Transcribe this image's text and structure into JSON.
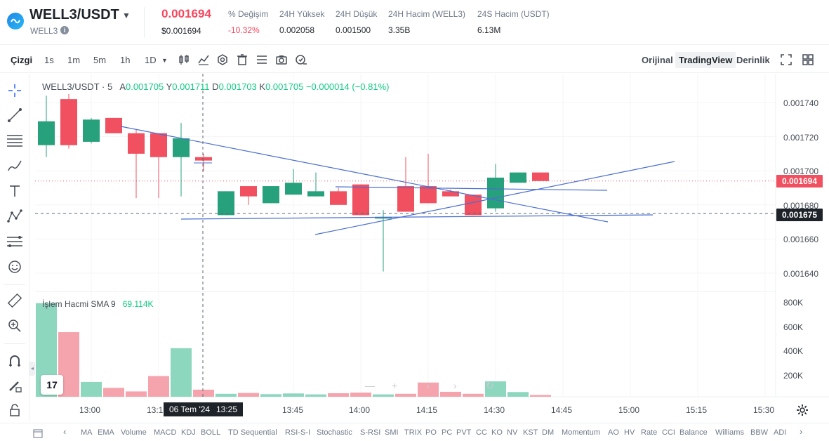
{
  "header": {
    "pair": "WELL3/USDT",
    "sub": "WELL3",
    "last_price": "0.001694",
    "last_price_usd": "$0.001694",
    "stats": [
      {
        "label": "% Değişim",
        "value": "-10.32%",
        "negative": true
      },
      {
        "label": "24H Yüksek",
        "value": "0.002058",
        "negative": false
      },
      {
        "label": "24H Düşük",
        "value": "0.001500",
        "negative": false
      },
      {
        "label": "24H Hacim (WELL3)",
        "value": "3.35B",
        "negative": false
      },
      {
        "label": "24S Hacim (USDT)",
        "value": "6.13M",
        "negative": false
      }
    ]
  },
  "toolbar": {
    "line_label": "Çizgi",
    "intervals": [
      "1s",
      "1m",
      "5m",
      "1h",
      "1D"
    ],
    "views": [
      "Orijinal",
      "TradingView",
      "Derinlik"
    ],
    "active_view": "TradingView"
  },
  "legend": {
    "symbol": "WELL3/USDT · 5",
    "items": [
      {
        "k": "A",
        "v": "0.001705"
      },
      {
        "k": "Y",
        "v": "0.001711"
      },
      {
        "k": "D",
        "v": "0.001703"
      },
      {
        "k": "K",
        "v": "0.001705"
      }
    ],
    "change": "−0.000014 (−0.81%)"
  },
  "volume_legend": {
    "label": "İşlem Hacmi SMA 9",
    "value": "69.114K"
  },
  "price_axis": [
    "0.001740",
    "0.001720",
    "0.001700",
    "0.001680",
    "0.001660",
    "0.001640"
  ],
  "volume_axis": [
    "800K",
    "600K",
    "400K",
    "200K"
  ],
  "time_axis": [
    "13:00",
    "13:1",
    "13:45",
    "14:00",
    "14:15",
    "14:30",
    "14:45",
    "15:00",
    "15:15",
    "15:30"
  ],
  "crosshair": {
    "date": "06 Tem '24",
    "time": "13:25",
    "price": "0.001675"
  },
  "current_price_tag": "0.001694",
  "colors": {
    "up": "#26a17b",
    "down": "#f0505f",
    "up_vol": "#8ed7bf",
    "down_vol": "#f5a4ad",
    "trendline": "#4a6fd1"
  },
  "chart_data": {
    "type": "candlestick",
    "interval": "5m",
    "series": [
      {
        "t": "12:55",
        "o": 0.001715,
        "h": 0.001744,
        "l": 0.001708,
        "c": 0.001729,
        "vol": 790000
      },
      {
        "t": "13:00",
        "o": 0.001742,
        "h": 0.001745,
        "l": 0.001713,
        "c": 0.001715,
        "vol": 545000
      },
      {
        "t": "13:05",
        "o": 0.001717,
        "h": 0.001731,
        "l": 0.001716,
        "c": 0.00173,
        "vol": 125000
      },
      {
        "t": "13:10",
        "o": 0.001731,
        "h": 0.001731,
        "l": 0.001722,
        "c": 0.001722,
        "vol": 75000
      },
      {
        "t": "13:15",
        "o": 0.001722,
        "h": 0.001724,
        "l": 0.001684,
        "c": 0.00171,
        "vol": 45000
      },
      {
        "t": "13:20",
        "o": 0.001722,
        "h": 0.001722,
        "l": 0.001684,
        "c": 0.001708,
        "vol": 175000
      },
      {
        "t": "13:25",
        "o": 0.001708,
        "h": 0.001728,
        "l": 0.001685,
        "c": 0.001719,
        "vol": 410000
      },
      {
        "t": "13:30",
        "o": 0.001708,
        "h": 0.00171,
        "l": 0.0017,
        "c": 0.001706,
        "vol": 60000
      },
      {
        "t": "13:35",
        "o": 0.001674,
        "h": 0.001688,
        "l": 0.001674,
        "c": 0.001688,
        "vol": 25000
      },
      {
        "t": "13:40",
        "o": 0.001691,
        "h": 0.001691,
        "l": 0.00168,
        "c": 0.001685,
        "vol": 32000
      },
      {
        "t": "13:45",
        "o": 0.001681,
        "h": 0.001691,
        "l": 0.001681,
        "c": 0.001691,
        "vol": 22000
      },
      {
        "t": "13:50",
        "o": 0.001686,
        "h": 0.001701,
        "l": 0.001686,
        "c": 0.001693,
        "vol": 28000
      },
      {
        "t": "13:55",
        "o": 0.001685,
        "h": 0.001699,
        "l": 0.001685,
        "c": 0.001688,
        "vol": 20000
      },
      {
        "t": "14:00",
        "o": 0.001688,
        "h": 0.00169,
        "l": 0.00168,
        "c": 0.00168,
        "vol": 30000
      },
      {
        "t": "14:05",
        "o": 0.001692,
        "h": 0.001692,
        "l": 0.001674,
        "c": 0.001674,
        "vol": 35000
      },
      {
        "t": "14:10",
        "o": 0.001672,
        "h": 0.001677,
        "l": 0.001641,
        "c": 0.001673,
        "vol": 20000
      },
      {
        "t": "14:15",
        "o": 0.001691,
        "h": 0.001708,
        "l": 0.001676,
        "c": 0.001676,
        "vol": 25000
      },
      {
        "t": "14:20",
        "o": 0.001691,
        "h": 0.00171,
        "l": 0.001681,
        "c": 0.001681,
        "vol": 120000
      },
      {
        "t": "14:25",
        "o": 0.001688,
        "h": 0.001689,
        "l": 0.001685,
        "c": 0.001685,
        "vol": 42000
      },
      {
        "t": "14:30",
        "o": 0.001686,
        "h": 0.001686,
        "l": 0.001674,
        "c": 0.001674,
        "vol": 25000
      },
      {
        "t": "14:35",
        "o": 0.001678,
        "h": 0.001704,
        "l": 0.001676,
        "c": 0.001696,
        "vol": 130000
      },
      {
        "t": "14:40",
        "o": 0.001693,
        "h": 0.001699,
        "l": 0.001693,
        "c": 0.001699,
        "vol": 40000
      },
      {
        "t": "14:45",
        "o": 0.001699,
        "h": 0.001699,
        "l": 0.001694,
        "c": 0.001694,
        "vol": 15000
      }
    ],
    "ylim": [
      0.00163,
      0.001745
    ],
    "volume_ylim": [
      0,
      850000
    ],
    "grid": true
  },
  "indicators": [
    "MA",
    "EMA",
    "Volume",
    "MACD",
    "KDJ",
    "BOLL",
    "TD Sequential",
    "RSI-S-I",
    "Stochastic",
    "S-RSI",
    "SMI",
    "TRIX",
    "PO",
    "PC",
    "PVT",
    "CC",
    "KO",
    "NV",
    "KST",
    "DM",
    "Momentum",
    "AO",
    "HV",
    "Rate",
    "CCI",
    "Balance",
    "Williams",
    "BBW",
    "ADI"
  ]
}
